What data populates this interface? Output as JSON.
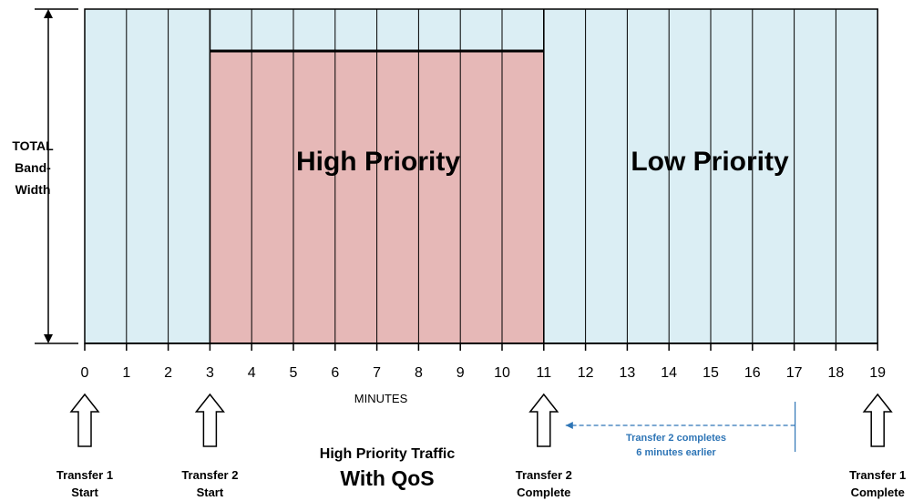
{
  "colors": {
    "low_priority_fill": "#dbeef4",
    "high_priority_fill": "#e6b8b7",
    "gridline": "#000000",
    "note_text": "#2e75b6",
    "note_arrow": "#2e75b6"
  },
  "y_axis_label": [
    "TOTAL",
    "Band-",
    "Width"
  ],
  "x_axis": {
    "title": "MINUTES",
    "ticks": [
      "0",
      "1",
      "2",
      "3",
      "4",
      "5",
      "6",
      "7",
      "8",
      "9",
      "10",
      "11",
      "12",
      "13",
      "14",
      "15",
      "16",
      "17",
      "18",
      "19"
    ],
    "min": 0,
    "max": 19
  },
  "regions": {
    "high_priority": {
      "label": "High Priority",
      "start_minute": 3,
      "end_minute": 11
    },
    "low_priority": {
      "label": "Low Priority"
    }
  },
  "events": [
    {
      "line1": "Transfer 1",
      "line2": "Start",
      "minute": 0
    },
    {
      "line1": "Transfer 2",
      "line2": "Start",
      "minute": 3
    },
    {
      "line1": "Transfer 2",
      "line2": "Complete",
      "minute": 11
    },
    {
      "line1": "Transfer 1",
      "line2": "Complete",
      "minute": 19
    }
  ],
  "note": {
    "line1": "Transfer 2 completes",
    "line2": "6 minutes earlier",
    "from_minute": 17,
    "to_minute": 11
  },
  "caption": {
    "line1": "High Priority Traffic",
    "line2": "With QoS"
  }
}
